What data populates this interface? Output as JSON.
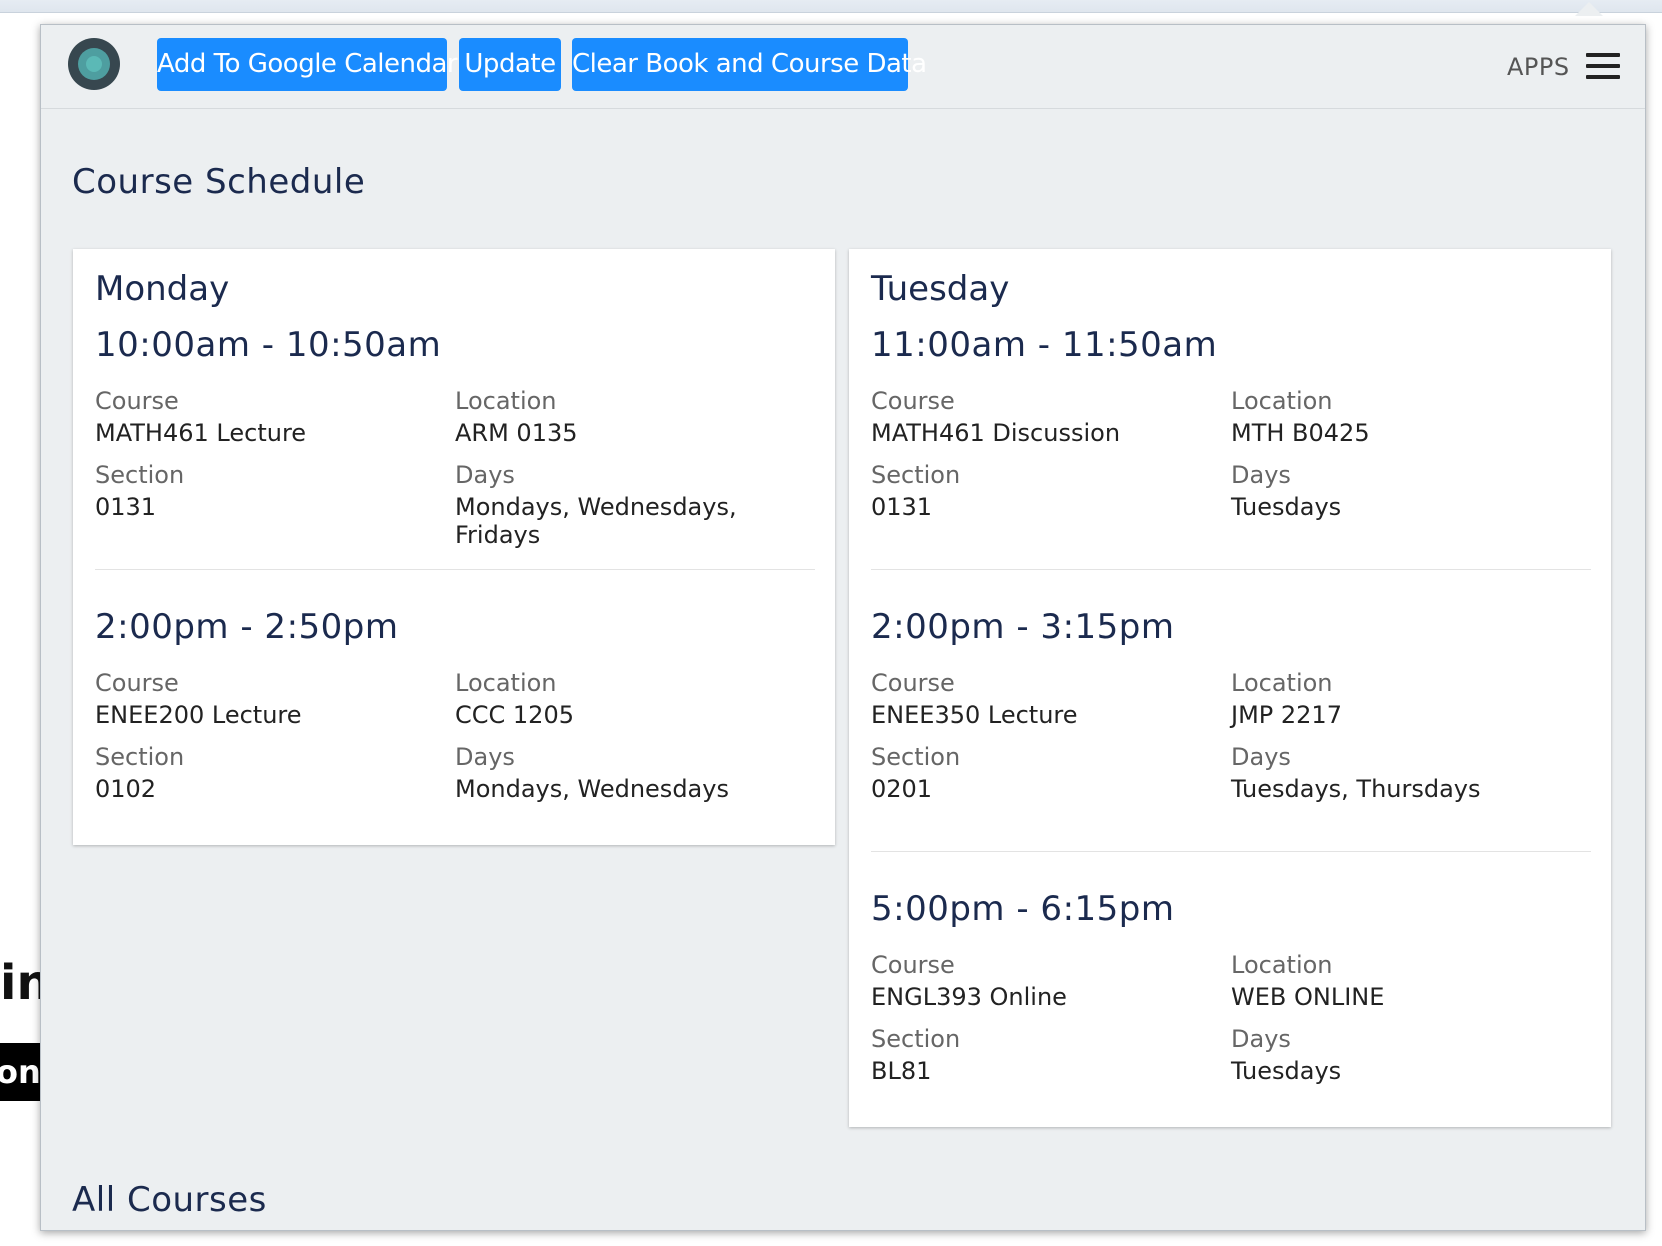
{
  "toolbar": {
    "add_calendar_label": "Add To Google Calendar",
    "update_label": "Update",
    "clear_label": "Clear Book and Course Data",
    "apps_label": "APPS",
    "accent_color": "#1a8cff"
  },
  "background": {
    "fragment_1": "in",
    "fragment_2": "on"
  },
  "schedule": {
    "title": "Course Schedule",
    "days": [
      {
        "name": "Monday",
        "entries": [
          {
            "time": "10:00am - 10:50am",
            "course_label": "Course",
            "course": "MATH461 Lecture",
            "location_label": "Location",
            "location": "ARM 0135",
            "section_label": "Section",
            "section": "0131",
            "days_label": "Days",
            "days": "Mondays, Wednesdays, Fridays"
          },
          {
            "time": "2:00pm - 2:50pm",
            "course_label": "Course",
            "course": "ENEE200 Lecture",
            "location_label": "Location",
            "location": "CCC 1205",
            "section_label": "Section",
            "section": "0102",
            "days_label": "Days",
            "days": "Mondays, Wednesdays"
          }
        ]
      },
      {
        "name": "Tuesday",
        "entries": [
          {
            "time": "11:00am - 11:50am",
            "course_label": "Course",
            "course": "MATH461 Discussion",
            "location_label": "Location",
            "location": "MTH B0425",
            "section_label": "Section",
            "section": "0131",
            "days_label": "Days",
            "days": "Tuesdays"
          },
          {
            "time": "2:00pm - 3:15pm",
            "course_label": "Course",
            "course": "ENEE350 Lecture",
            "location_label": "Location",
            "location": "JMP 2217",
            "section_label": "Section",
            "section": "0201",
            "days_label": "Days",
            "days": "Tuesdays, Thursdays"
          },
          {
            "time": "5:00pm - 6:15pm",
            "course_label": "Course",
            "course": "ENGL393 Online",
            "location_label": "Location",
            "location": "WEB ONLINE",
            "section_label": "Section",
            "section": "BL81",
            "days_label": "Days",
            "days": "Tuesdays"
          }
        ]
      }
    ]
  },
  "all_courses": {
    "title": "All Courses"
  }
}
